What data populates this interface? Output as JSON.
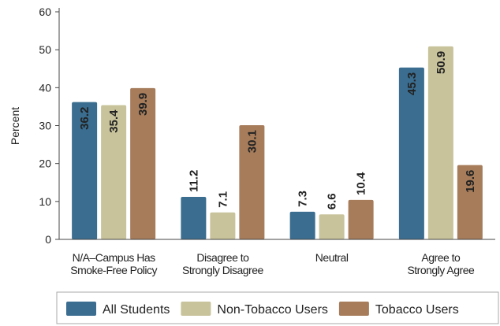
{
  "chart_data": {
    "type": "bar",
    "y_label": "Percent",
    "categories": [
      [
        "N/A–Campus Has",
        "Smoke-Free Policy"
      ],
      [
        "Disagree to",
        "Strongly Disagree"
      ],
      [
        "Neutral"
      ],
      [
        "Agree to",
        "Strongly Agree"
      ]
    ],
    "series": [
      {
        "name": "All Students",
        "color": "#3a6d8f",
        "values": [
          36.2,
          11.2,
          7.3,
          45.3
        ]
      },
      {
        "name": "Non-Tobacco Users",
        "color": "#c8c39b",
        "values": [
          35.4,
          7.1,
          6.6,
          50.9
        ]
      },
      {
        "name": "Tobacco Users",
        "color": "#a67c5b",
        "values": [
          39.9,
          30.1,
          10.4,
          19.6
        ]
      }
    ],
    "ylim": [
      0,
      60
    ],
    "yticks": [
      0,
      10,
      20,
      30,
      40,
      50,
      60
    ],
    "legend": "bottom"
  }
}
